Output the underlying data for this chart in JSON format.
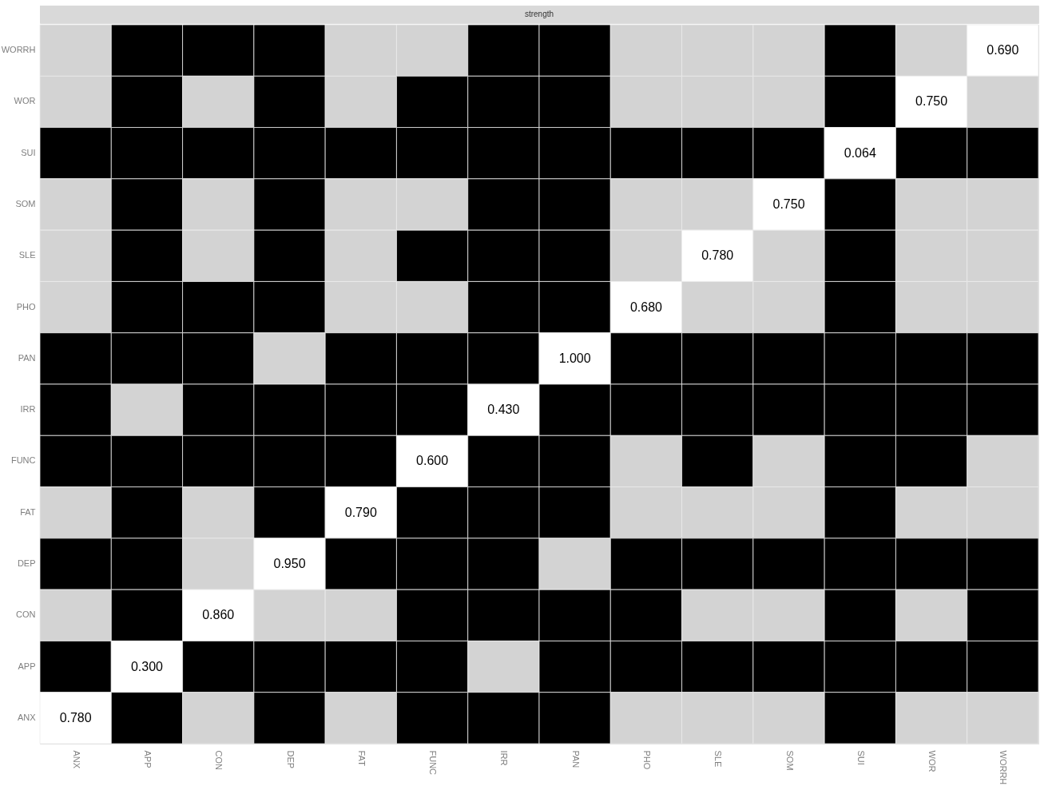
{
  "chart_data": {
    "type": "heatmap",
    "title": "strength",
    "categories": [
      "ANX",
      "APP",
      "CON",
      "DEP",
      "FAT",
      "FUNC",
      "IRR",
      "PAN",
      "PHO",
      "SLE",
      "SOM",
      "SUI",
      "WOR",
      "WORRH"
    ],
    "y_categories": [
      "WORRH",
      "WOR",
      "SUI",
      "SOM",
      "SLE",
      "PHO",
      "PAN",
      "IRR",
      "FUNC",
      "FAT",
      "DEP",
      "CON",
      "APP",
      "ANX"
    ],
    "cells": [
      [
        null,
        null,
        null,
        null,
        null,
        null,
        null,
        null,
        null,
        null,
        null,
        null,
        null,
        0.69
      ],
      [
        null,
        null,
        null,
        null,
        null,
        null,
        null,
        null,
        null,
        null,
        null,
        null,
        0.75,
        null
      ],
      [
        null,
        null,
        null,
        null,
        null,
        null,
        null,
        null,
        null,
        null,
        null,
        0.064,
        null,
        null
      ],
      [
        null,
        null,
        null,
        null,
        null,
        null,
        null,
        null,
        null,
        null,
        0.75,
        null,
        null,
        null
      ],
      [
        null,
        null,
        null,
        null,
        null,
        null,
        null,
        null,
        null,
        0.78,
        null,
        null,
        null,
        null
      ],
      [
        null,
        null,
        null,
        null,
        null,
        null,
        null,
        null,
        0.68,
        null,
        null,
        null,
        null,
        null
      ],
      [
        null,
        null,
        null,
        null,
        null,
        null,
        null,
        1.0,
        null,
        null,
        null,
        null,
        null,
        null
      ],
      [
        null,
        null,
        null,
        null,
        null,
        null,
        0.43,
        null,
        null,
        null,
        null,
        null,
        null,
        null
      ],
      [
        null,
        null,
        null,
        null,
        null,
        0.6,
        null,
        null,
        null,
        null,
        null,
        null,
        null,
        null
      ],
      [
        null,
        null,
        null,
        null,
        0.79,
        null,
        null,
        null,
        null,
        null,
        null,
        null,
        null,
        null
      ],
      [
        null,
        null,
        null,
        0.95,
        null,
        null,
        null,
        null,
        null,
        null,
        null,
        null,
        null,
        null
      ],
      [
        null,
        null,
        0.86,
        null,
        null,
        null,
        null,
        null,
        null,
        null,
        null,
        null,
        null,
        null
      ],
      [
        null,
        0.3,
        null,
        null,
        null,
        null,
        null,
        null,
        null,
        null,
        null,
        null,
        null,
        null
      ],
      [
        0.78,
        null,
        null,
        null,
        null,
        null,
        null,
        null,
        null,
        null,
        null,
        null,
        null,
        null
      ]
    ],
    "cell_labels": [
      [
        null,
        null,
        null,
        null,
        null,
        null,
        null,
        null,
        null,
        null,
        null,
        null,
        null,
        "0.690"
      ],
      [
        null,
        null,
        null,
        null,
        null,
        null,
        null,
        null,
        null,
        null,
        null,
        null,
        "0.750",
        null
      ],
      [
        null,
        null,
        null,
        null,
        null,
        null,
        null,
        null,
        null,
        null,
        null,
        "0.064",
        null,
        null
      ],
      [
        null,
        null,
        null,
        null,
        null,
        null,
        null,
        null,
        null,
        null,
        "0.750",
        null,
        null,
        null
      ],
      [
        null,
        null,
        null,
        null,
        null,
        null,
        null,
        null,
        null,
        "0.780",
        null,
        null,
        null,
        null
      ],
      [
        null,
        null,
        null,
        null,
        null,
        null,
        null,
        null,
        "0.680",
        null,
        null,
        null,
        null,
        null
      ],
      [
        null,
        null,
        null,
        null,
        null,
        null,
        null,
        "1.000",
        null,
        null,
        null,
        null,
        null,
        null
      ],
      [
        null,
        null,
        null,
        null,
        null,
        null,
        "0.430",
        null,
        null,
        null,
        null,
        null,
        null,
        null
      ],
      [
        null,
        null,
        null,
        null,
        null,
        "0.600",
        null,
        null,
        null,
        null,
        null,
        null,
        null,
        null
      ],
      [
        null,
        null,
        null,
        null,
        "0.790",
        null,
        null,
        null,
        null,
        null,
        null,
        null,
        null,
        null
      ],
      [
        null,
        null,
        null,
        "0.950",
        null,
        null,
        null,
        null,
        null,
        null,
        null,
        null,
        null,
        null
      ],
      [
        null,
        null,
        "0.860",
        null,
        null,
        null,
        null,
        null,
        null,
        null,
        null,
        null,
        null,
        null
      ],
      [
        null,
        "0.300",
        null,
        null,
        null,
        null,
        null,
        null,
        null,
        null,
        null,
        null,
        null,
        null
      ],
      [
        "0.780",
        null,
        null,
        null,
        null,
        null,
        null,
        null,
        null,
        null,
        null,
        null,
        null,
        null
      ]
    ],
    "colors": [
      [
        "#d3d3d3",
        "#000000",
        "#000000",
        "#000000",
        "#d3d3d3",
        "#d3d3d3",
        "#000000",
        "#000000",
        "#d3d3d3",
        "#d3d3d3",
        "#d3d3d3",
        "#000000",
        "#d3d3d3",
        "#ffffff"
      ],
      [
        "#d3d3d3",
        "#000000",
        "#d3d3d3",
        "#000000",
        "#d3d3d3",
        "#000000",
        "#000000",
        "#000000",
        "#d3d3d3",
        "#d3d3d3",
        "#d3d3d3",
        "#000000",
        "#ffffff",
        "#d3d3d3"
      ],
      [
        "#000000",
        "#000000",
        "#000000",
        "#000000",
        "#000000",
        "#000000",
        "#000000",
        "#000000",
        "#000000",
        "#000000",
        "#000000",
        "#ffffff",
        "#000000",
        "#000000"
      ],
      [
        "#d3d3d3",
        "#000000",
        "#d3d3d3",
        "#000000",
        "#d3d3d3",
        "#d3d3d3",
        "#000000",
        "#000000",
        "#d3d3d3",
        "#d3d3d3",
        "#ffffff",
        "#000000",
        "#d3d3d3",
        "#d3d3d3"
      ],
      [
        "#d3d3d3",
        "#000000",
        "#d3d3d3",
        "#000000",
        "#d3d3d3",
        "#000000",
        "#000000",
        "#000000",
        "#d3d3d3",
        "#ffffff",
        "#d3d3d3",
        "#000000",
        "#d3d3d3",
        "#d3d3d3"
      ],
      [
        "#d3d3d3",
        "#000000",
        "#000000",
        "#000000",
        "#d3d3d3",
        "#d3d3d3",
        "#000000",
        "#000000",
        "#ffffff",
        "#d3d3d3",
        "#d3d3d3",
        "#000000",
        "#d3d3d3",
        "#d3d3d3"
      ],
      [
        "#000000",
        "#000000",
        "#000000",
        "#d3d3d3",
        "#000000",
        "#000000",
        "#000000",
        "#ffffff",
        "#000000",
        "#000000",
        "#000000",
        "#000000",
        "#000000",
        "#000000"
      ],
      [
        "#000000",
        "#d3d3d3",
        "#000000",
        "#000000",
        "#000000",
        "#000000",
        "#ffffff",
        "#000000",
        "#000000",
        "#000000",
        "#000000",
        "#000000",
        "#000000",
        "#000000"
      ],
      [
        "#000000",
        "#000000",
        "#000000",
        "#000000",
        "#000000",
        "#ffffff",
        "#000000",
        "#000000",
        "#d3d3d3",
        "#000000",
        "#d3d3d3",
        "#000000",
        "#000000",
        "#d3d3d3"
      ],
      [
        "#d3d3d3",
        "#000000",
        "#d3d3d3",
        "#000000",
        "#ffffff",
        "#000000",
        "#000000",
        "#000000",
        "#d3d3d3",
        "#d3d3d3",
        "#d3d3d3",
        "#000000",
        "#d3d3d3",
        "#d3d3d3"
      ],
      [
        "#000000",
        "#000000",
        "#d3d3d3",
        "#ffffff",
        "#000000",
        "#000000",
        "#000000",
        "#d3d3d3",
        "#000000",
        "#000000",
        "#000000",
        "#000000",
        "#000000",
        "#000000"
      ],
      [
        "#d3d3d3",
        "#000000",
        "#ffffff",
        "#d3d3d3",
        "#d3d3d3",
        "#000000",
        "#000000",
        "#000000",
        "#000000",
        "#d3d3d3",
        "#d3d3d3",
        "#000000",
        "#d3d3d3",
        "#000000"
      ],
      [
        "#000000",
        "#ffffff",
        "#000000",
        "#000000",
        "#000000",
        "#000000",
        "#d3d3d3",
        "#000000",
        "#000000",
        "#000000",
        "#000000",
        "#000000",
        "#000000",
        "#000000"
      ],
      [
        "#ffffff",
        "#000000",
        "#d3d3d3",
        "#000000",
        "#d3d3d3",
        "#000000",
        "#000000",
        "#000000",
        "#d3d3d3",
        "#d3d3d3",
        "#d3d3d3",
        "#000000",
        "#d3d3d3",
        "#d3d3d3"
      ]
    ]
  }
}
